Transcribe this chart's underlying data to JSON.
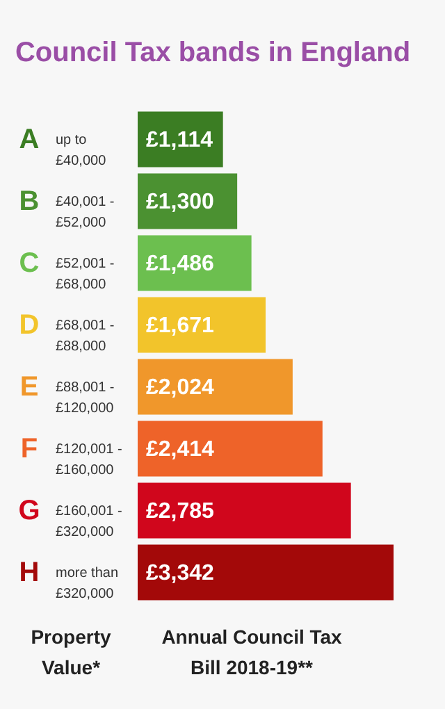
{
  "chart_data": {
    "type": "bar",
    "orientation": "horizontal",
    "title": "Council Tax bands in England",
    "xlabel": "Annual Council Tax Bill 2018-19**",
    "ylabel": "Property Value*",
    "categories": [
      "A",
      "B",
      "C",
      "D",
      "E",
      "F",
      "G",
      "H"
    ],
    "values": [
      1114,
      1300,
      1486,
      1671,
      2024,
      2414,
      2785,
      3342
    ],
    "colors": [
      "#3b7d23",
      "#4b9131",
      "#6cbf4f",
      "#f2c42b",
      "#f0972b",
      "#ee6329",
      "#d0061c",
      "#a30909"
    ],
    "value_labels": [
      "£1,114",
      "£1,300",
      "£1,486",
      "£1,671",
      "£2,024",
      "£2,414",
      "£2,785",
      "£3,342"
    ],
    "annotations": [
      "up to £40,000",
      "£40,001 - £52,000",
      "£52,001 - £68,000",
      "£68,001 - £88,000",
      "£88,001 - £120,000",
      "£120,001 - £160,000",
      "£160,001 - £320,000",
      "more than £320,000"
    ]
  }
}
